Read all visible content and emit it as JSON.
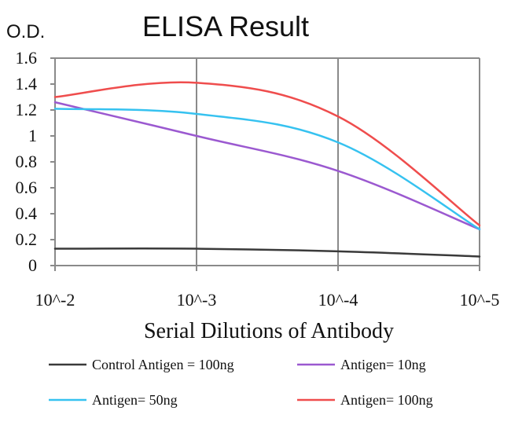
{
  "chart_data": {
    "type": "line",
    "title": "ELISA Result",
    "ylabel": "O.D.",
    "xlabel": "Serial Dilutions of Antibody",
    "categories": [
      "10^-2",
      "10^-3",
      "10^-4",
      "10^-5"
    ],
    "ylim": [
      0,
      1.6
    ],
    "yticks": [
      "0",
      "0.2",
      "0.4",
      "0.6",
      "0.8",
      "1",
      "1.2",
      "1.4",
      "1.6"
    ],
    "grid": "vertical",
    "legend_position": "bottom",
    "series": [
      {
        "name": "Control Antigen = 100ng",
        "color": "#3a3a3a",
        "values": [
          0.13,
          0.13,
          0.11,
          0.07
        ]
      },
      {
        "name": "Antigen= 10ng",
        "color": "#9b59d0",
        "values": [
          1.26,
          1.0,
          0.73,
          0.28
        ]
      },
      {
        "name": "Antigen= 50ng",
        "color": "#36c2f0",
        "values": [
          1.21,
          1.17,
          0.95,
          0.28
        ]
      },
      {
        "name": "Antigen= 100ng",
        "color": "#ef4d4d",
        "values": [
          1.3,
          1.41,
          1.15,
          0.31
        ]
      }
    ]
  }
}
